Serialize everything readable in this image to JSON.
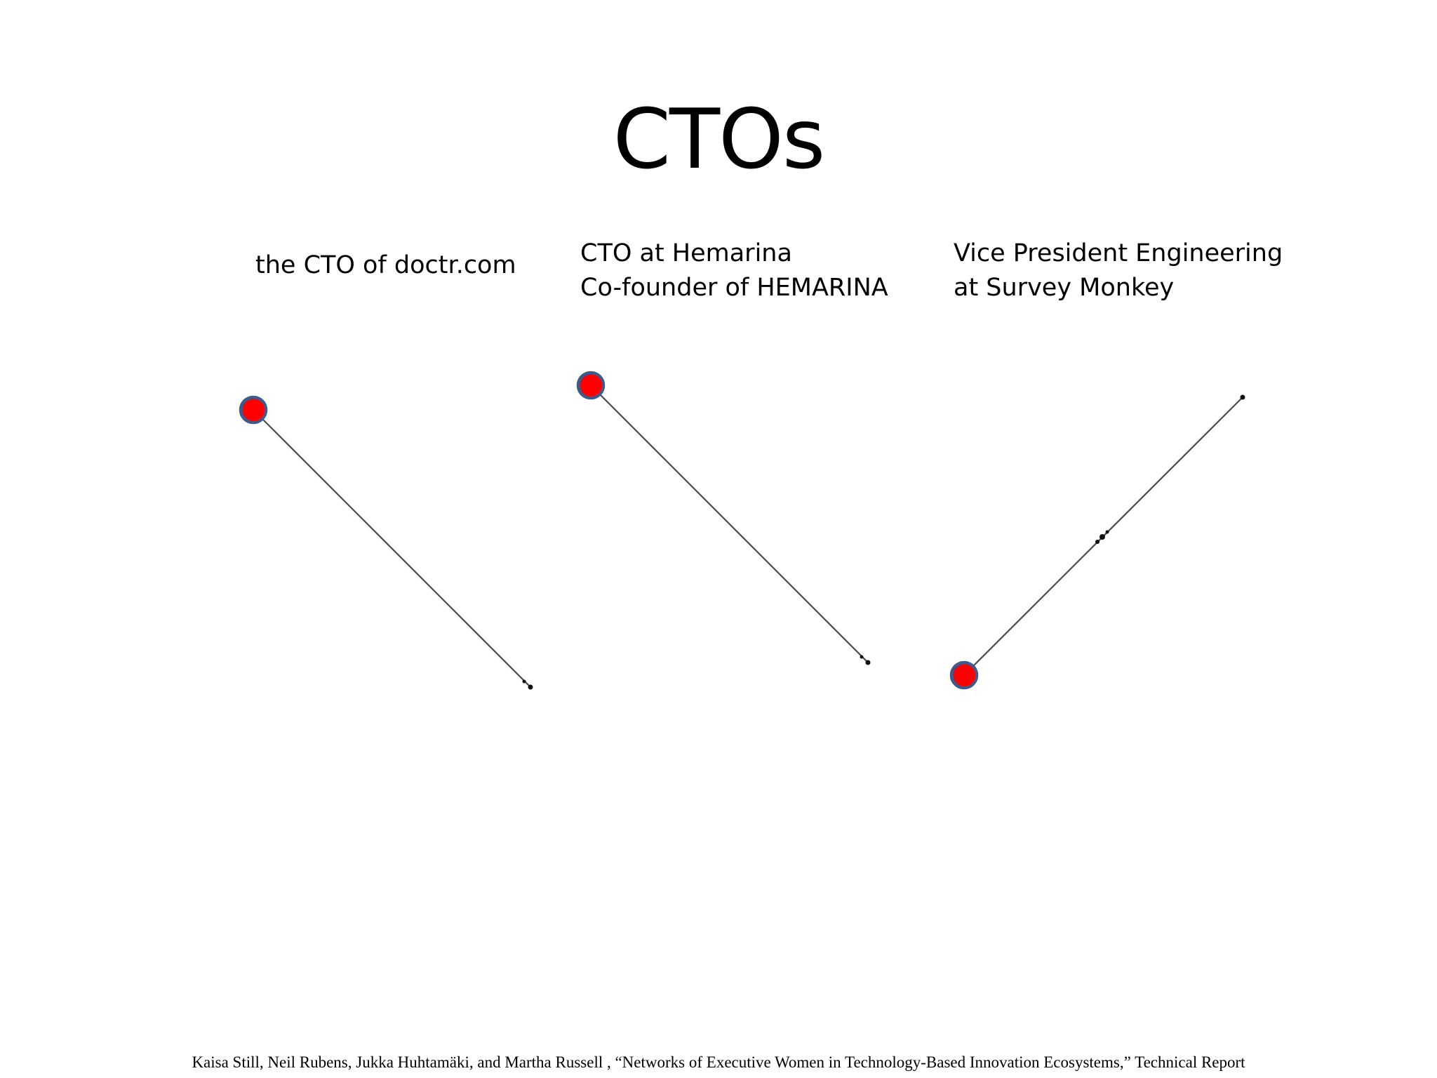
{
  "title": "CTOs",
  "panels": [
    {
      "caption_lines": [
        "the CTO of doctr.com"
      ]
    },
    {
      "caption_lines": [
        "CTO at Hemarina",
        "Co-founder of HEMARINA"
      ]
    },
    {
      "caption_lines": [
        "Vice President Engineering",
        "at Survey Monkey"
      ]
    }
  ],
  "colors": {
    "highlight_node_fill": "#ff0000",
    "highlight_node_stroke": "#3f5a8a",
    "edge": "#4a4a4a",
    "small_node": "#111111"
  },
  "citation": "Kaisa Still,  Neil Rubens, Jukka Huhtamäki, and Martha Russell , “Networks of Executive Women  in Technology-Based Innovation Ecosystems,” Technical Report"
}
